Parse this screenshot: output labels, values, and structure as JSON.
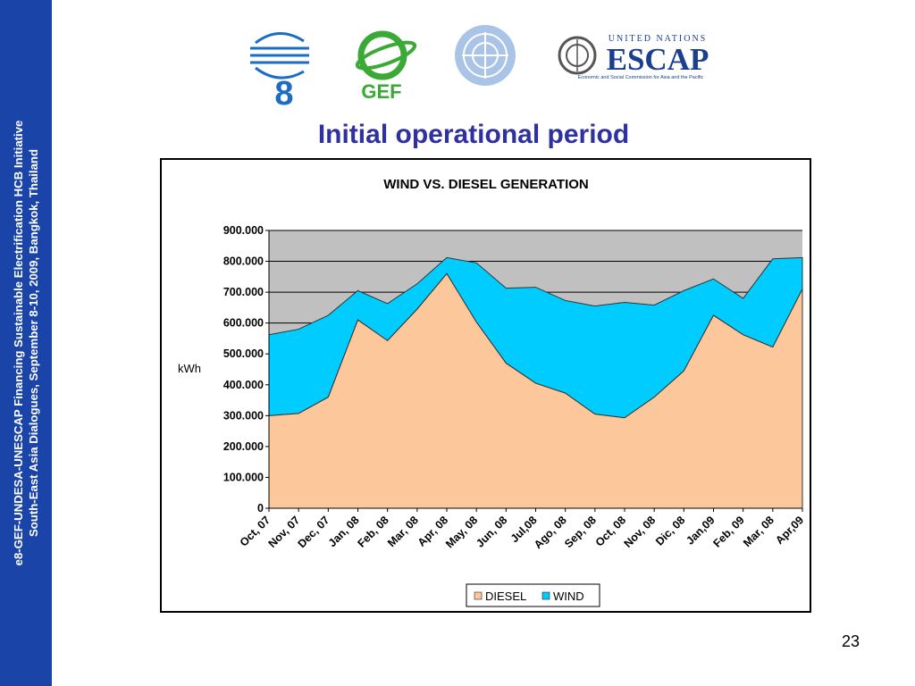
{
  "sidebar": {
    "line1": "e8-GEF-UNDESA-UNESCAP Financing Sustainable Electrification HCB Initiative",
    "line2": "South-East Asia Dialogues, September  8-10, 2009, Bangkok, Thailand"
  },
  "logos": {
    "e8": "8",
    "gef": "GEF",
    "escap_un": "UNITED NATIONS",
    "escap_name": "ESCAP",
    "escap_sub": "Economic and Social Commission for Asia and the Pacific"
  },
  "slide": {
    "title": "Initial operational period",
    "page_number": "23"
  },
  "colors": {
    "sidebar": "#1b44a8",
    "title": "#2f31a0",
    "diesel": "#fcc89b",
    "wind": "#00ccff",
    "plot_bg": "#c0c0c0"
  },
  "chart_data": {
    "type": "area",
    "stacked": true,
    "title": "WIND VS. DIESEL GENERATION",
    "xlabel": "",
    "ylabel": "kWh",
    "ylim": [
      0,
      900000
    ],
    "yticks": [
      "0",
      "100.000",
      "200.000",
      "300.000",
      "400.000",
      "500.000",
      "600.000",
      "700.000",
      "800.000",
      "900.000"
    ],
    "categories": [
      "Oct, 07",
      "Nov, 07",
      "Dec, 07",
      "Jan, 08",
      "Feb, 08",
      "Mar, 08",
      "Apr, 08",
      "May, 08",
      "Jun, 08",
      "Jul,08",
      "Ago, 08",
      "Sep, 08",
      "Oct, 08",
      "Nov, 08",
      "Dic, 08",
      "Jan,09",
      "Feb, 09",
      "Mar, 08",
      "Apr,09"
    ],
    "series": [
      {
        "name": "DIESEL",
        "values": [
          300000,
          307000,
          360000,
          610000,
          543000,
          645000,
          760000,
          603000,
          470000,
          405000,
          373000,
          305000,
          293000,
          360000,
          445000,
          625000,
          562000,
          522000,
          710000
        ]
      },
      {
        "name": "WIND",
        "values": [
          262000,
          273000,
          265000,
          95000,
          120000,
          82000,
          52000,
          192000,
          243000,
          311000,
          300000,
          350000,
          374000,
          298000,
          260000,
          118000,
          118000,
          286000,
          102000
        ]
      }
    ],
    "legend": {
      "position": "bottom",
      "entries": [
        "DIESEL",
        "WIND"
      ]
    },
    "grid": true
  }
}
